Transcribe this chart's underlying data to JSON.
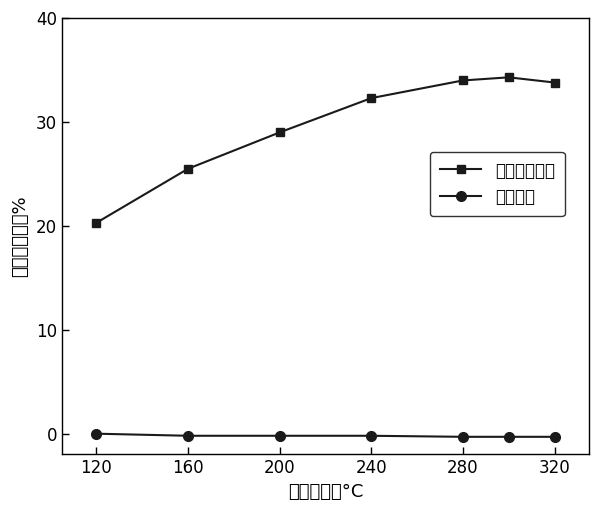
{
  "x": [
    120,
    160,
    200,
    240,
    280,
    300,
    320
  ],
  "y_untreated": [
    20.3,
    25.5,
    29.0,
    32.3,
    34.0,
    34.3,
    33.8
  ],
  "y_treated": [
    0.0,
    -0.2,
    -0.2,
    -0.2,
    -0.3,
    -0.3,
    -0.3
  ],
  "xlabel": "反应温度，°C",
  "ylabel": "乙烯转化率，%",
  "legend_untreated": "未经乙妆处理",
  "legend_treated": "乙妆处理",
  "xlim": [
    105,
    335
  ],
  "ylim": [
    -2,
    40
  ],
  "xticks": [
    120,
    160,
    200,
    240,
    280,
    320
  ],
  "yticks": [
    0,
    10,
    20,
    30,
    40
  ],
  "line_color": "#1a1a1a",
  "background_color": "#ffffff"
}
